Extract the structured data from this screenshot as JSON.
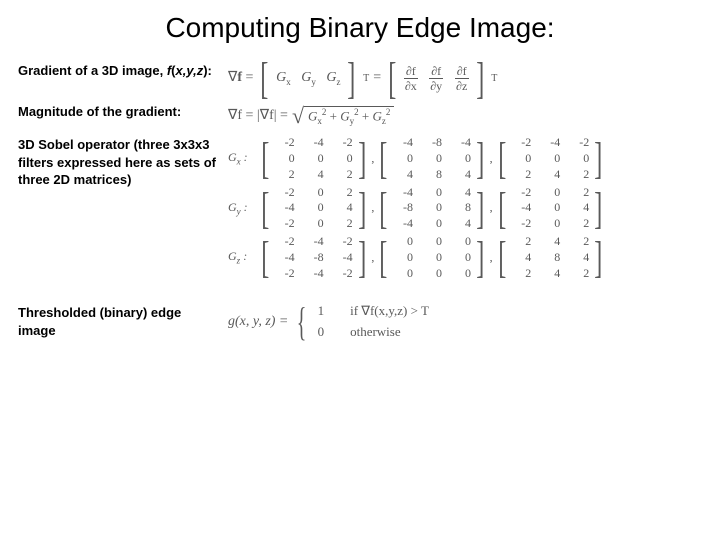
{
  "title": "Computing Binary Edge Image:",
  "sections": {
    "gradient": {
      "label": "Gradient of a 3D image, f(x,y,z):",
      "symbol": "∇f",
      "eq_components": [
        "G",
        "x",
        "G",
        "y",
        "G",
        "z"
      ],
      "partials": [
        {
          "num": "∂f",
          "den": "∂x"
        },
        {
          "num": "∂f",
          "den": "∂y"
        },
        {
          "num": "∂f",
          "den": "∂z"
        }
      ],
      "transpose": "T"
    },
    "magnitude": {
      "label": "Magnitude of the gradient:",
      "lhs": "∇f = |∇f| =",
      "radicand_parts": [
        "G",
        "x",
        "2",
        "G",
        "y",
        "2",
        "G",
        "z",
        "2"
      ]
    },
    "sobel": {
      "label": "3D Sobel operator (three 3x3x3 filters expressed here as sets of three 2D matrices)",
      "operators": [
        {
          "name": "Gx",
          "mats": [
            [
              [
                "-2",
                "-4",
                "-2"
              ],
              [
                "0",
                "0",
                "0"
              ],
              [
                "2",
                "4",
                "2"
              ]
            ],
            [
              [
                "-4",
                "-8",
                "-4"
              ],
              [
                "0",
                "0",
                "0"
              ],
              [
                "4",
                "8",
                "4"
              ]
            ],
            [
              [
                "-2",
                "-4",
                "-2"
              ],
              [
                "0",
                "0",
                "0"
              ],
              [
                "2",
                "4",
                "2"
              ]
            ]
          ]
        },
        {
          "name": "Gy",
          "mats": [
            [
              [
                "-2",
                "0",
                "2"
              ],
              [
                "-4",
                "0",
                "4"
              ],
              [
                "-2",
                "0",
                "2"
              ]
            ],
            [
              [
                "-4",
                "0",
                "4"
              ],
              [
                "-8",
                "0",
                "8"
              ],
              [
                "-4",
                "0",
                "4"
              ]
            ],
            [
              [
                "-2",
                "0",
                "2"
              ],
              [
                "-4",
                "0",
                "4"
              ],
              [
                "-2",
                "0",
                "2"
              ]
            ]
          ]
        },
        {
          "name": "Gz",
          "mats": [
            [
              [
                "-2",
                "-4",
                "-2"
              ],
              [
                "-4",
                "-8",
                "-4"
              ],
              [
                "-2",
                "-4",
                "-2"
              ]
            ],
            [
              [
                "0",
                "0",
                "0"
              ],
              [
                "0",
                "0",
                "0"
              ],
              [
                "0",
                "0",
                "0"
              ]
            ],
            [
              [
                "2",
                "4",
                "2"
              ],
              [
                "4",
                "8",
                "4"
              ],
              [
                "2",
                "4",
                "2"
              ]
            ]
          ]
        }
      ]
    },
    "threshold": {
      "label": "Thresholded (binary) edge image",
      "lhs": "g(x, y, z) =",
      "cases": [
        {
          "val": "1",
          "cond": "if ∇f(x,y,z) > T"
        },
        {
          "val": "0",
          "cond": "otherwise"
        }
      ]
    }
  },
  "colors": {
    "text": "#000000",
    "math": "#595959",
    "background": "#ffffff"
  },
  "typography": {
    "title_fontsize": 28,
    "label_fontsize": 13,
    "math_fontsize": 14,
    "math_font": "Times New Roman"
  }
}
